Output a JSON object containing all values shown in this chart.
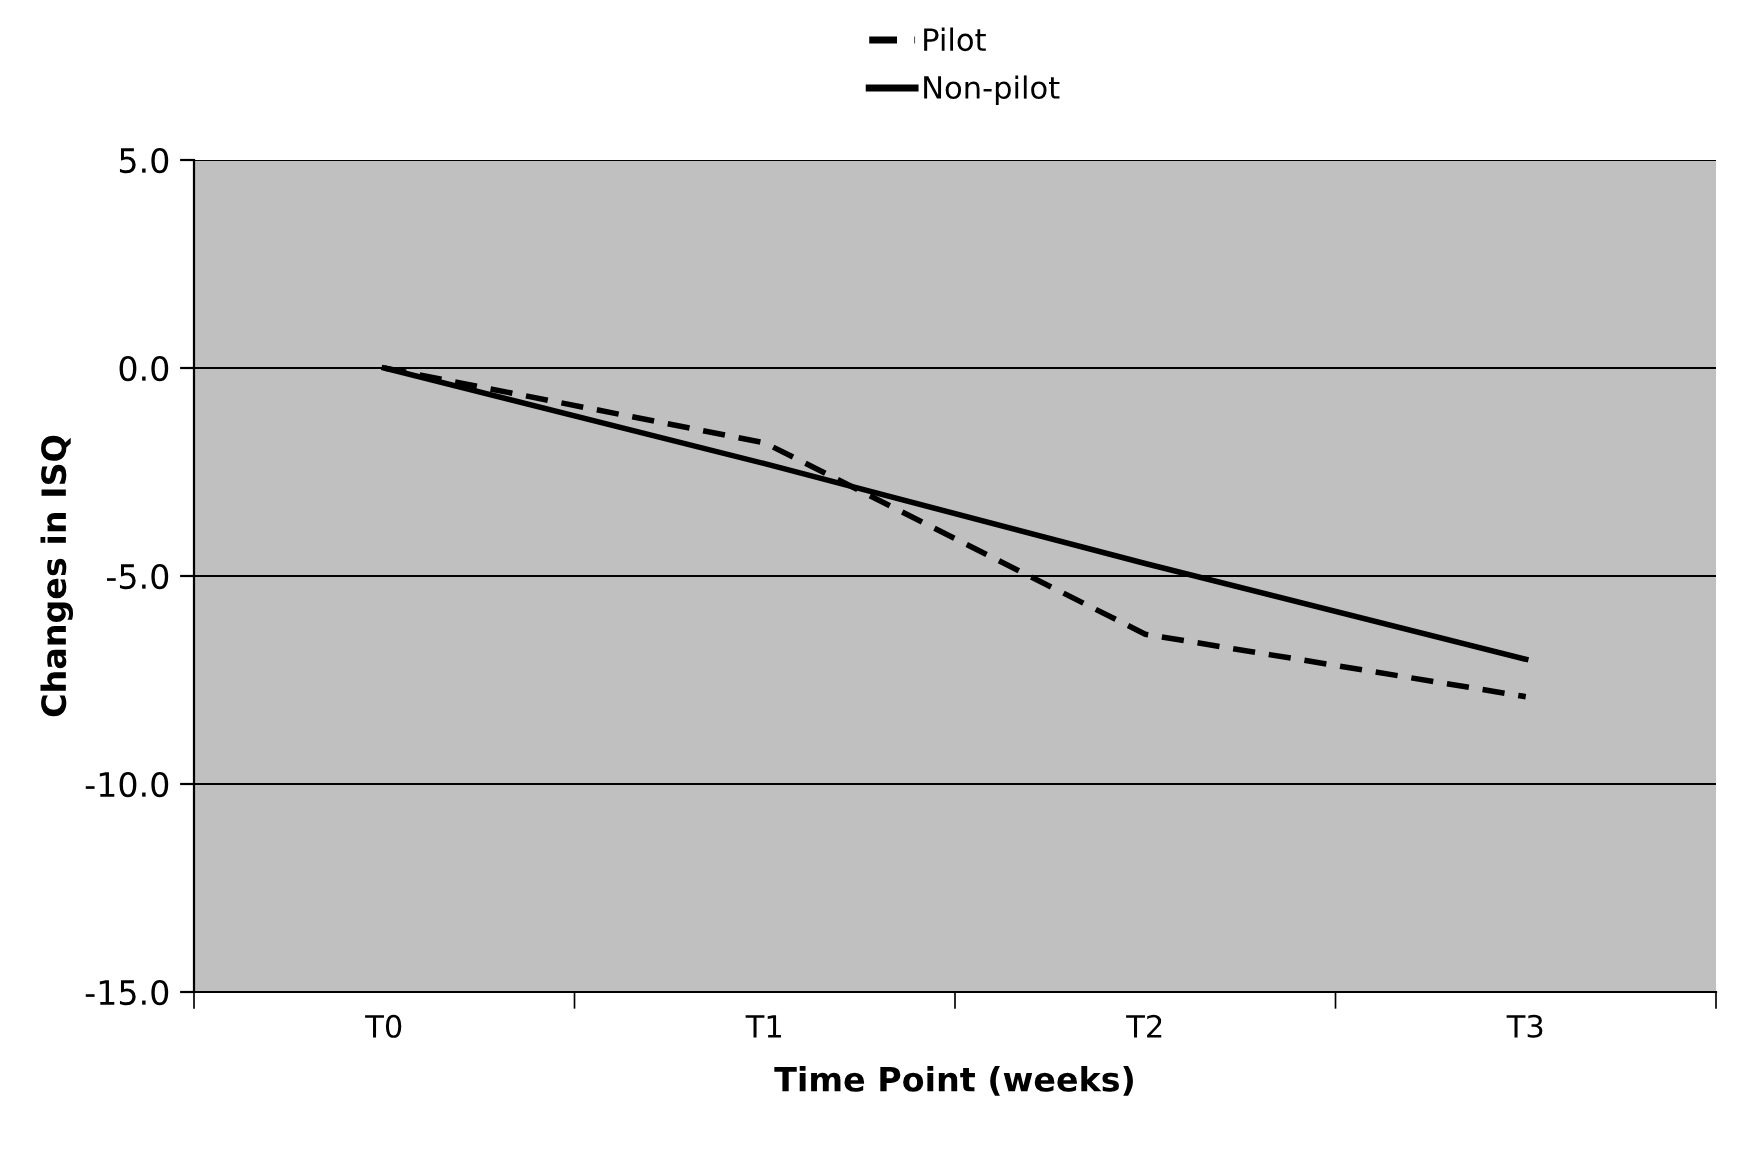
{
  "chart_data": {
    "type": "line",
    "xlabel": "Time Point (weeks)",
    "ylabel": "Changes in ISQ",
    "categories": [
      "T0",
      "T1",
      "T2",
      "T3"
    ],
    "series": [
      {
        "name": "Pilot",
        "color": "#000000",
        "line_style": "dashed",
        "values": [
          0.0,
          -1.8,
          -6.4,
          -7.9
        ]
      },
      {
        "name": "Non-pilot",
        "color": "#000000",
        "line_style": "solid",
        "values": [
          0.0,
          -2.3,
          -4.7,
          -7.0
        ]
      }
    ],
    "ylim": [
      -15.0,
      5.0
    ],
    "yticks": [
      {
        "value": -15,
        "label": "-15.0"
      },
      {
        "value": -10,
        "label": "-10.0"
      },
      {
        "value": -5,
        "label": "-5.0"
      },
      {
        "value": 0,
        "label": "0.0"
      },
      {
        "value": 5,
        "label": "5.0"
      }
    ],
    "grid": "y",
    "legend": "top",
    "marker": "none"
  }
}
